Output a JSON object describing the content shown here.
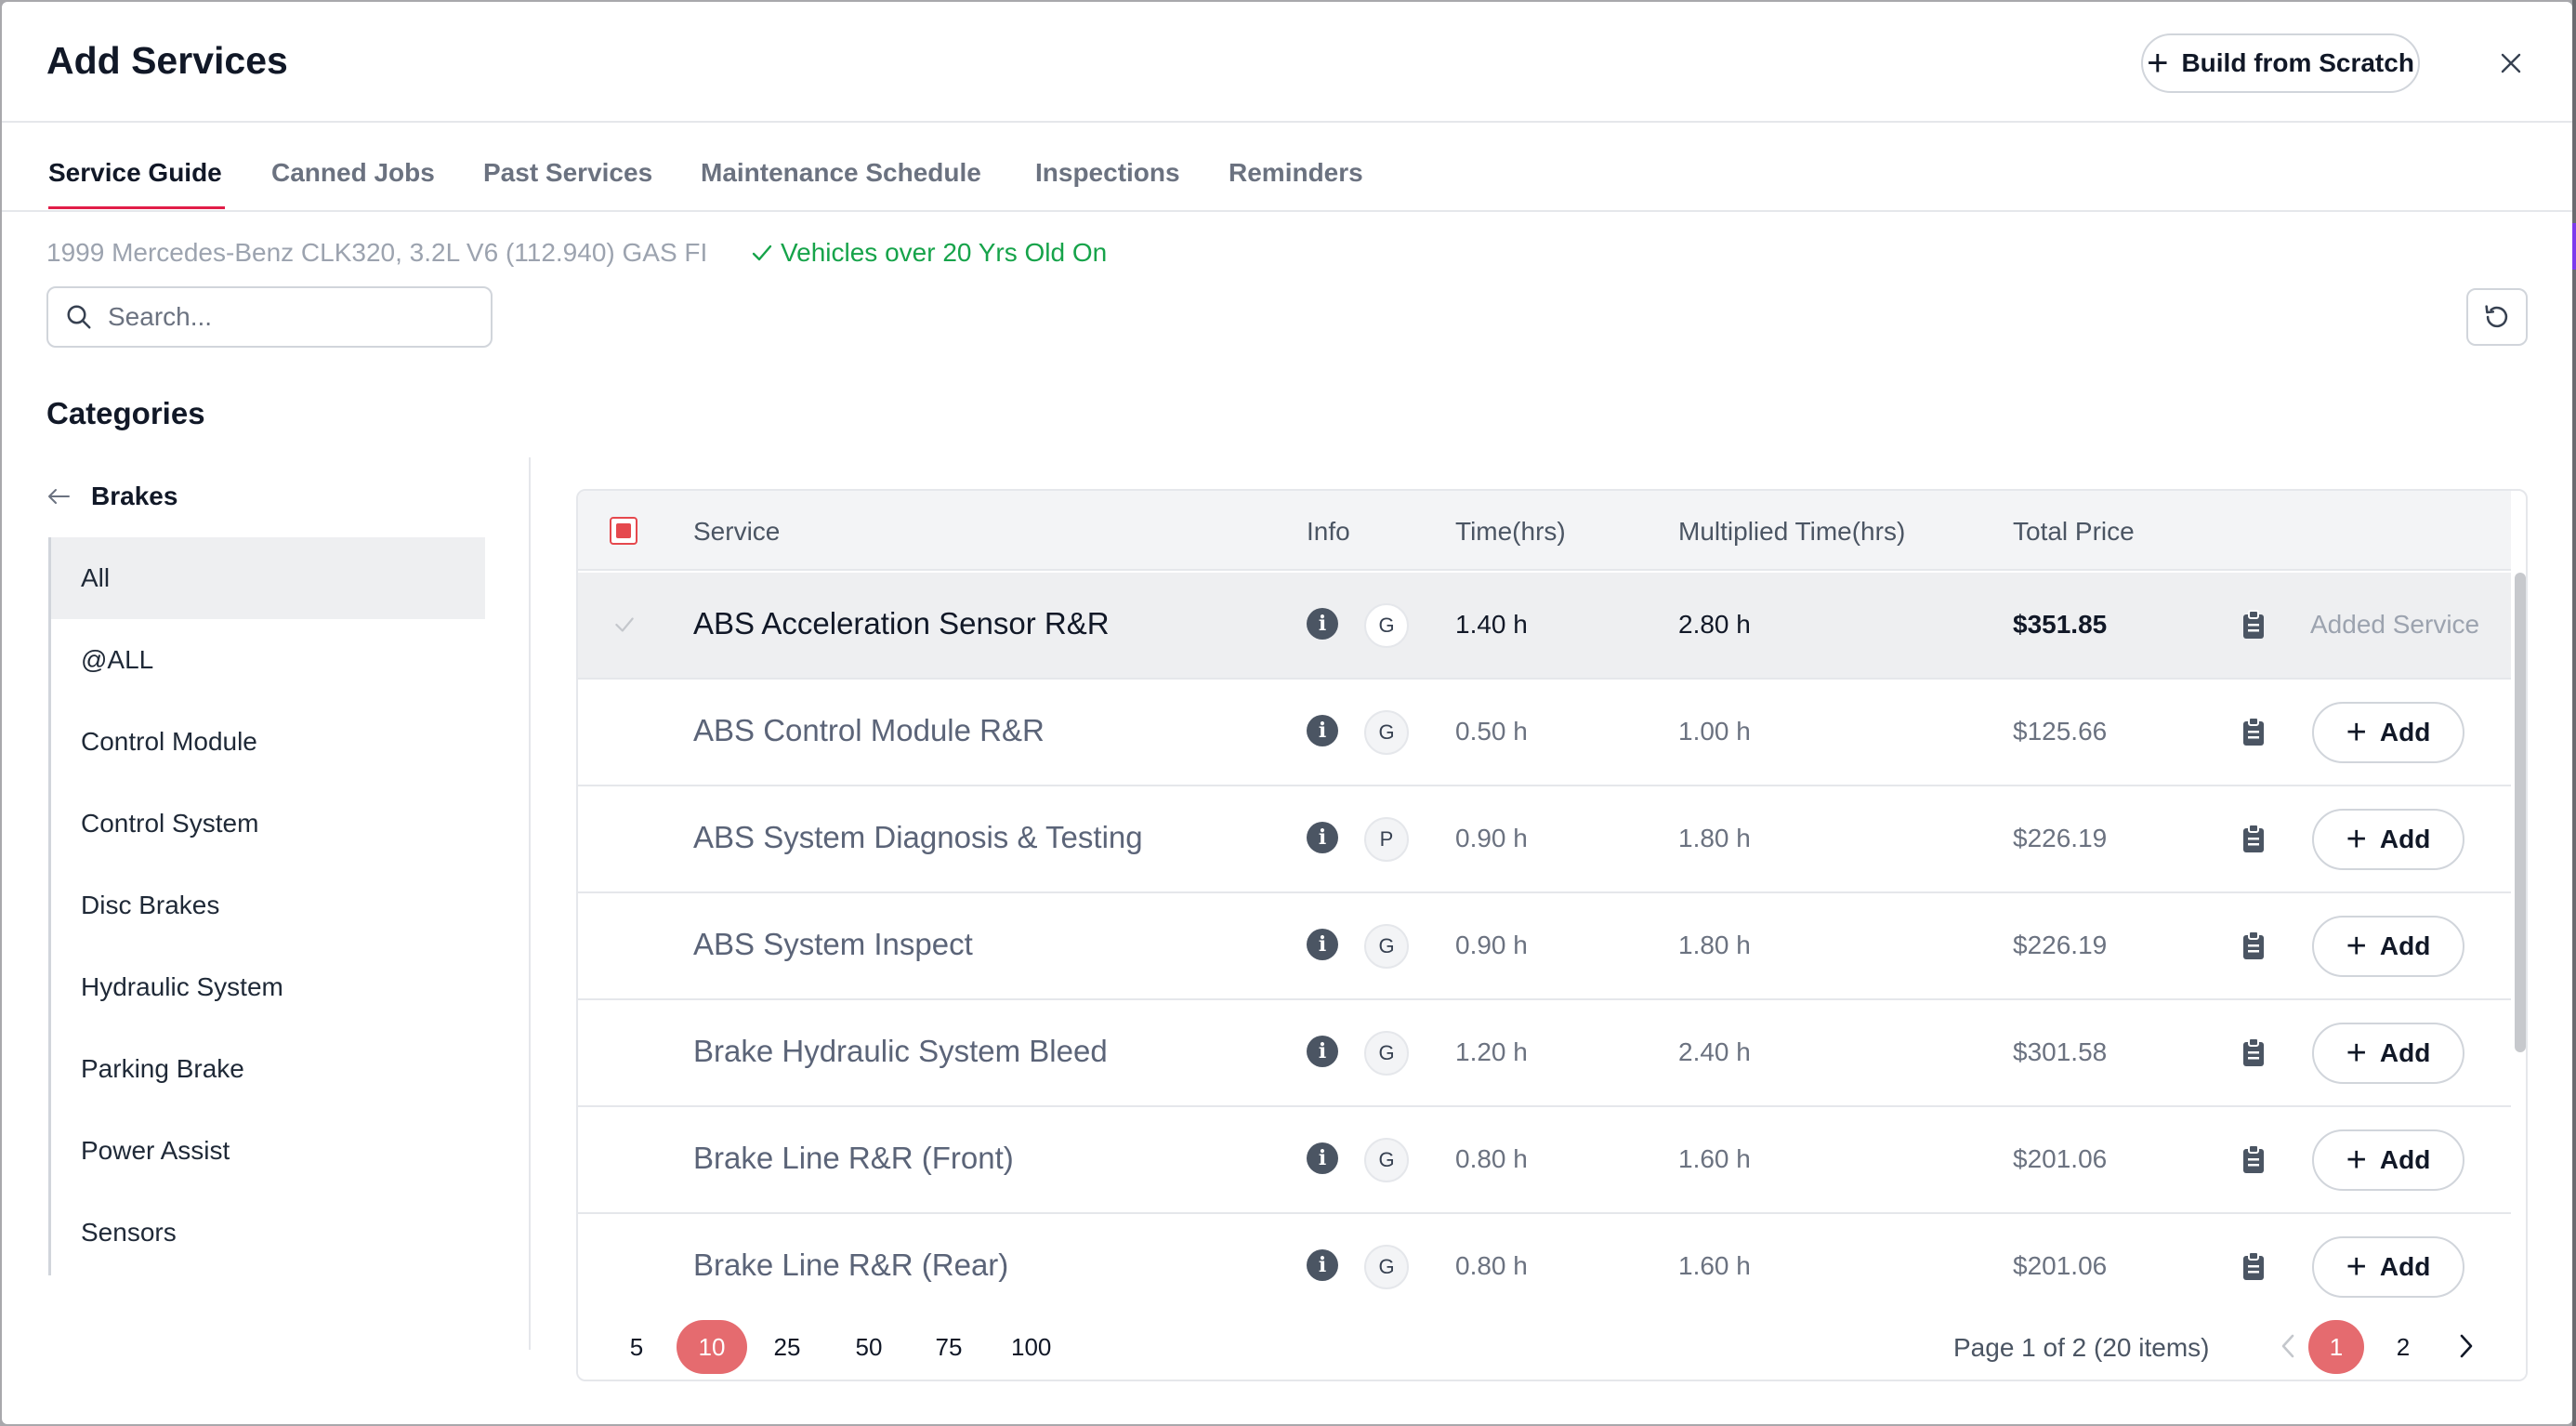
{
  "modal": {
    "title": "Add Services",
    "build_button_label": "Build from Scratch"
  },
  "tabs": [
    {
      "label": "Service Guide",
      "active": true
    },
    {
      "label": "Canned Jobs",
      "active": false
    },
    {
      "label": "Past Services",
      "active": false
    },
    {
      "label": "Maintenance Schedule",
      "active": false
    },
    {
      "label": "Inspections",
      "active": false
    },
    {
      "label": "Reminders",
      "active": false
    }
  ],
  "vehicle": {
    "description": "1999 Mercedes-Benz CLK320, 3.2L V6 (112.940) GAS FI",
    "note": "Vehicles over 20 Yrs Old On"
  },
  "search": {
    "placeholder": "Search...",
    "value": ""
  },
  "categories": {
    "heading": "Categories",
    "current": "Brakes",
    "items": [
      {
        "label": "All",
        "active": true
      },
      {
        "label": "@ALL",
        "active": false
      },
      {
        "label": "Control Module",
        "active": false
      },
      {
        "label": "Control System",
        "active": false
      },
      {
        "label": "Disc Brakes",
        "active": false
      },
      {
        "label": "Hydraulic System",
        "active": false
      },
      {
        "label": "Parking Brake",
        "active": false
      },
      {
        "label": "Power Assist",
        "active": false
      },
      {
        "label": "Sensors",
        "active": false
      }
    ]
  },
  "table": {
    "columns": {
      "service": "Service",
      "info": "Info",
      "time": "Time(hrs)",
      "multiplied": "Multiplied Time(hrs)",
      "price": "Total Price"
    },
    "added_label": "Added Service",
    "add_label": "Add",
    "rows": [
      {
        "service": "ABS Acceleration Sensor R&R",
        "type": "G",
        "time": "1.40 h",
        "multiplied": "2.80 h",
        "price": "$351.85",
        "added": true
      },
      {
        "service": "ABS Control Module R&R",
        "type": "G",
        "time": "0.50 h",
        "multiplied": "1.00 h",
        "price": "$125.66",
        "added": false
      },
      {
        "service": "ABS System Diagnosis & Testing",
        "type": "P",
        "time": "0.90 h",
        "multiplied": "1.80 h",
        "price": "$226.19",
        "added": false
      },
      {
        "service": "ABS System Inspect",
        "type": "G",
        "time": "0.90 h",
        "multiplied": "1.80 h",
        "price": "$226.19",
        "added": false
      },
      {
        "service": "Brake Hydraulic System Bleed",
        "type": "G",
        "time": "1.20 h",
        "multiplied": "2.40 h",
        "price": "$301.58",
        "added": false
      },
      {
        "service": "Brake Line R&R (Front)",
        "type": "G",
        "time": "0.80 h",
        "multiplied": "1.60 h",
        "price": "$201.06",
        "added": false
      },
      {
        "service": "Brake Line R&R (Rear)",
        "type": "G",
        "time": "0.80 h",
        "multiplied": "1.60 h",
        "price": "$201.06",
        "added": false
      }
    ]
  },
  "pagination": {
    "page_sizes": [
      "5",
      "10",
      "25",
      "50",
      "75",
      "100"
    ],
    "selected_size": "10",
    "info": "Page 1 of 2 (20 items)",
    "pages": [
      "1",
      "2"
    ],
    "current_page": "1"
  },
  "colors": {
    "accent": "#e56b6f",
    "tab_underline": "#e11d48",
    "success": "#16a34a"
  }
}
